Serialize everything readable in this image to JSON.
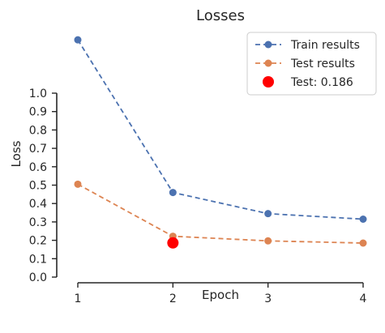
{
  "chart_data": {
    "type": "line",
    "title": "Losses",
    "xlabel": "Epoch",
    "ylabel": "Loss",
    "x": [
      1,
      2,
      3,
      4
    ],
    "x_ticks": [
      "1",
      "2",
      "3",
      "4"
    ],
    "y_ticks": [
      "0.0",
      "0.1",
      "0.2",
      "0.3",
      "0.4",
      "0.5",
      "0.6",
      "0.7",
      "0.8",
      "0.9",
      "1.0"
    ],
    "ylim": [
      0,
      1.0
    ],
    "grid": false,
    "legend_position": "top-right",
    "series": [
      {
        "name": "Train results",
        "values": [
          1.29,
          0.46,
          0.345,
          0.315
        ],
        "color": "#4c72b0",
        "style": "dashed",
        "marker": "circle"
      },
      {
        "name": "Test results",
        "values": [
          0.505,
          0.222,
          0.197,
          0.185
        ],
        "color": "#dd8452",
        "style": "dashed",
        "marker": "circle"
      }
    ],
    "highlight": {
      "name": "Test: 0.186",
      "x": 2,
      "y": 0.186,
      "color": "#ff0000"
    }
  }
}
